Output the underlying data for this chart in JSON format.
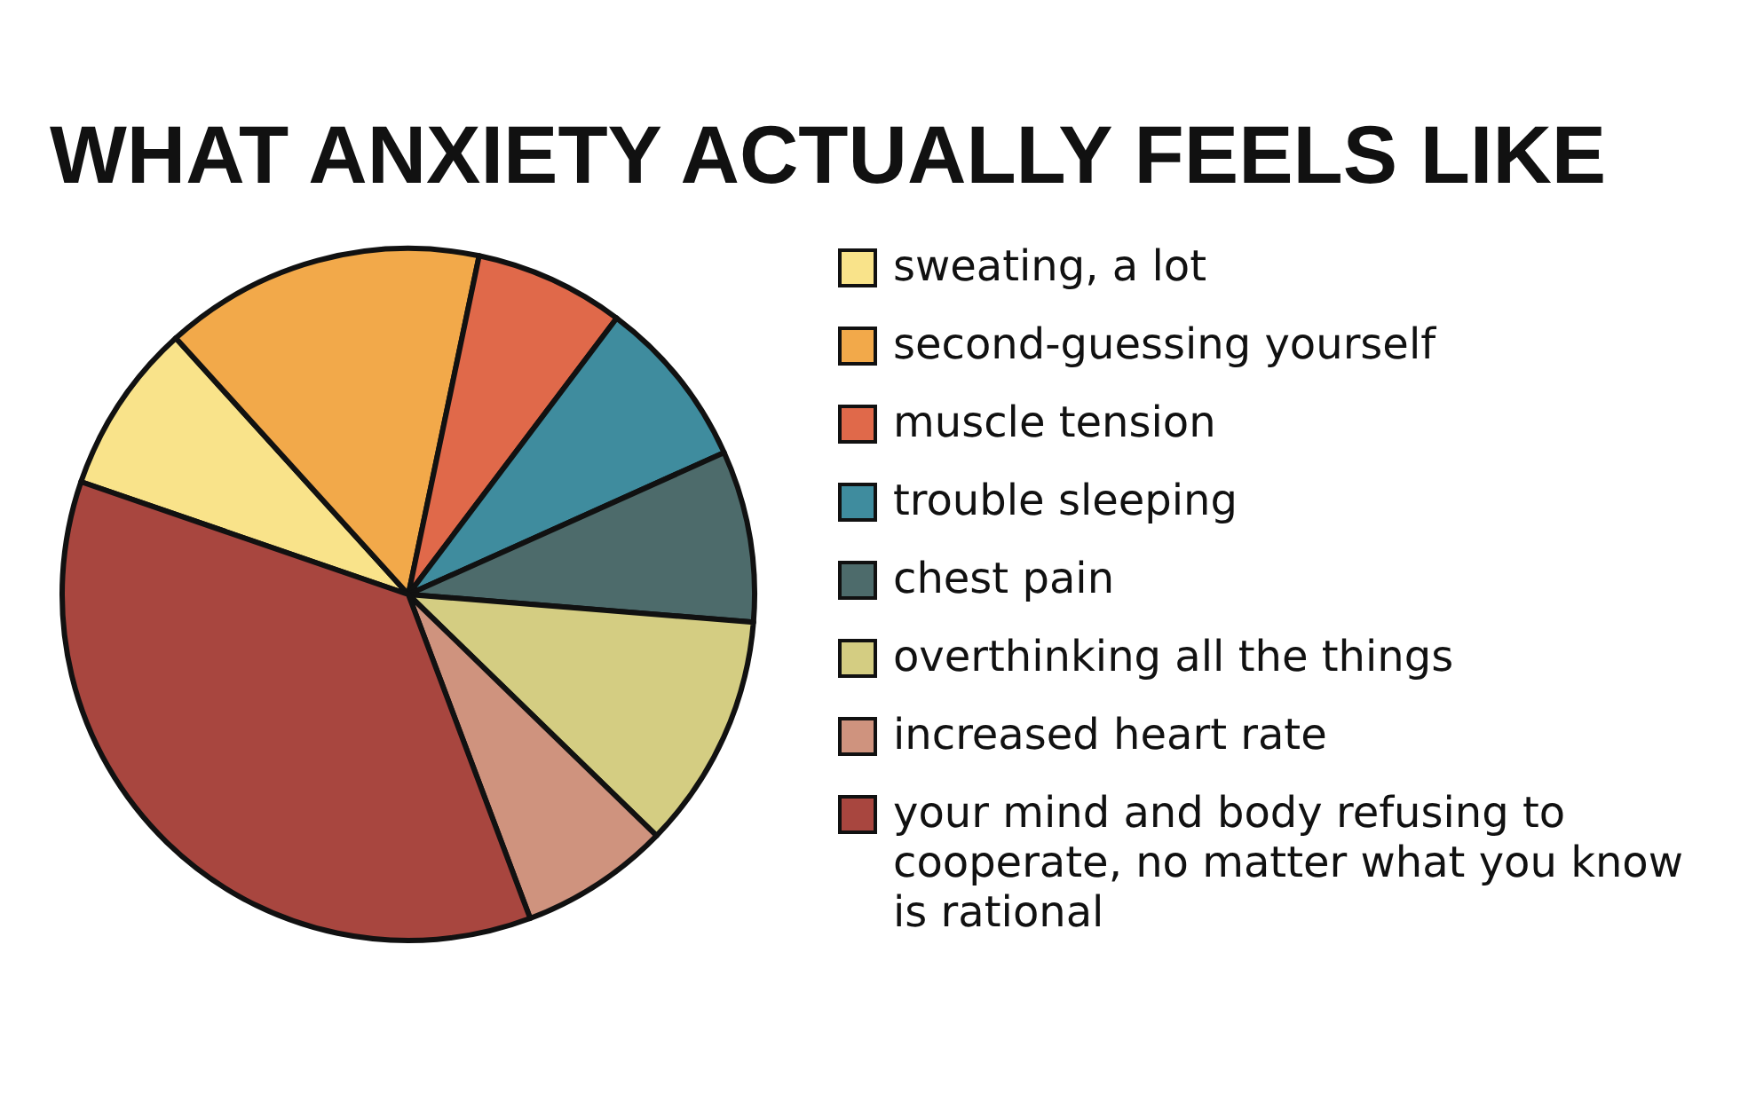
{
  "chart_data": {
    "type": "pie",
    "title": "WHAT ANXIETY ACTUALLY FEELS LIKE",
    "categories": [
      "sweating, a lot",
      "second-guessing yourself",
      "muscle tension",
      "trouble sleeping",
      "chest pain",
      "overthinking all the things",
      "increased heart rate",
      "your mind and body refusing to cooperate, no matter what you know is rational"
    ],
    "values": [
      8,
      15,
      7,
      8,
      8,
      11,
      7,
      36
    ],
    "colors": [
      "#f9e38a",
      "#f2a94a",
      "#e0694a",
      "#3f8c9e",
      "#4d6b6b",
      "#d4cd82",
      "#cf937e",
      "#a8463f"
    ],
    "legend": "right"
  }
}
